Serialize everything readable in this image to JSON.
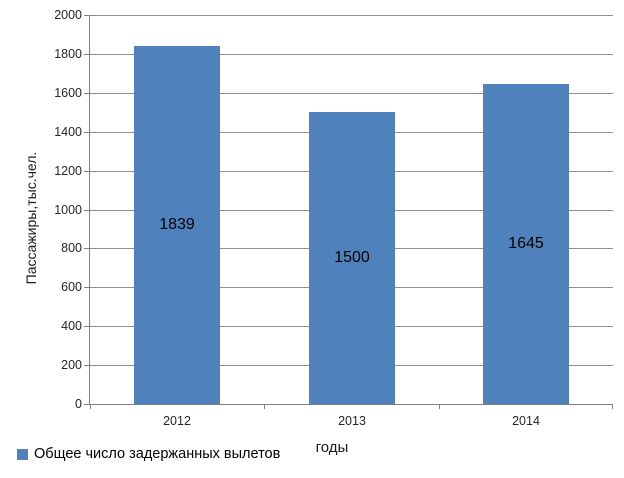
{
  "chart_data": {
    "type": "bar",
    "title": "",
    "categories": [
      "2012",
      "2013",
      "2014"
    ],
    "values": [
      1839,
      1500,
      1645
    ],
    "data_labels": [
      "1839",
      "1500",
      "1645"
    ],
    "series": [
      {
        "name": "Общее число задержанных вылетов",
        "values": [
          1839,
          1500,
          1645
        ]
      }
    ],
    "legend": [
      "Общее число задержанных вылетов"
    ],
    "legend_position": "bottom-left",
    "xlabel": "годы",
    "ylabel": "Пассажиры,тыс.чел.",
    "ylim": [
      0,
      2000
    ],
    "ytick_step": 200,
    "yticks": [
      "0",
      "200",
      "400",
      "600",
      "800",
      "1000",
      "1200",
      "1400",
      "1600",
      "1800",
      "2000"
    ],
    "grid": true,
    "colors": {
      "bar": "#4F81BD",
      "gridline": "#8F8F8F",
      "axis": "#808080",
      "tick_text": "#262626",
      "label_text": "#000000"
    }
  }
}
